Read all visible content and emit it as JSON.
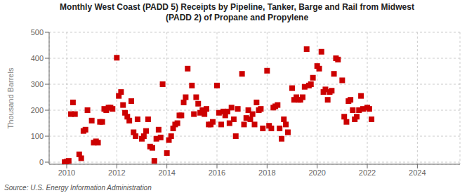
{
  "chart_data": {
    "type": "scatter",
    "title": "Monthly West Coast (PADD 5) Receipts by Pipeline, Tanker, Barge and Rail from Midwest\n(PADD 2) of Propane and Propylene",
    "ylabel": "Thousand Barrels",
    "annotations": [
      "Source: U.S. Energy Information Administration"
    ],
    "color": "#cc0000",
    "marker": "square",
    "grid": true,
    "xlim": [
      2009.3,
      2025.7
    ],
    "xticks": [
      2010,
      2012,
      2014,
      2016,
      2018,
      2020,
      2022,
      2024
    ],
    "ylim": [
      -8,
      500
    ],
    "yticks": [
      0,
      100,
      200,
      300,
      400,
      500
    ],
    "x": [
      2009.92,
      2010.0,
      2010.08,
      2010.17,
      2010.25,
      2010.33,
      2010.5,
      2010.58,
      2010.67,
      2010.75,
      2010.83,
      2011.0,
      2011.08,
      2011.17,
      2011.25,
      2011.33,
      2011.42,
      2011.5,
      2011.58,
      2011.67,
      2011.75,
      2011.83,
      2012.0,
      2012.08,
      2012.17,
      2012.25,
      2012.33,
      2012.42,
      2012.5,
      2012.58,
      2012.67,
      2012.75,
      2012.83,
      2013.0,
      2013.08,
      2013.17,
      2013.25,
      2013.33,
      2013.42,
      2013.5,
      2013.58,
      2013.67,
      2013.75,
      2013.83,
      2014.0,
      2014.08,
      2014.17,
      2014.25,
      2014.33,
      2014.42,
      2014.5,
      2014.58,
      2014.67,
      2014.75,
      2014.83,
      2015.0,
      2015.08,
      2015.17,
      2015.25,
      2015.33,
      2015.42,
      2015.5,
      2015.58,
      2015.67,
      2015.75,
      2015.83,
      2016.0,
      2016.08,
      2016.17,
      2016.25,
      2016.33,
      2016.42,
      2016.5,
      2016.58,
      2016.67,
      2016.75,
      2016.83,
      2017.0,
      2017.08,
      2017.17,
      2017.25,
      2017.33,
      2017.42,
      2017.5,
      2017.58,
      2017.67,
      2017.75,
      2017.83,
      2018.0,
      2018.08,
      2018.17,
      2018.25,
      2018.33,
      2018.42,
      2018.5,
      2018.58,
      2018.67,
      2018.75,
      2018.83,
      2019.0,
      2019.08,
      2019.17,
      2019.25,
      2019.33,
      2019.42,
      2019.5,
      2019.58,
      2019.67,
      2019.75,
      2019.83,
      2020.0,
      2020.08,
      2020.17,
      2020.25,
      2020.33,
      2020.42,
      2020.5,
      2020.58,
      2020.67,
      2020.75,
      2020.83,
      2021.0,
      2021.08,
      2021.17,
      2021.25,
      2021.33,
      2021.42,
      2021.5,
      2021.58,
      2021.67,
      2021.75,
      2021.83,
      2022.0,
      2022.08,
      2022.17
    ],
    "values": [
      0,
      2,
      5,
      185,
      230,
      185,
      30,
      15,
      120,
      125,
      200,
      160,
      75,
      80,
      75,
      155,
      155,
      205,
      200,
      210,
      210,
      205,
      402,
      255,
      270,
      220,
      190,
      175,
      160,
      235,
      115,
      100,
      165,
      90,
      100,
      120,
      165,
      60,
      55,
      5,
      90,
      125,
      95,
      300,
      35,
      85,
      100,
      130,
      145,
      150,
      180,
      180,
      230,
      250,
      360,
      295,
      185,
      250,
      225,
      190,
      200,
      185,
      205,
      145,
      145,
      155,
      295,
      190,
      145,
      195,
      180,
      195,
      150,
      210,
      165,
      100,
      205,
      340,
      145,
      170,
      200,
      165,
      185,
      145,
      230,
      200,
      205,
      130,
      352,
      140,
      130,
      210,
      215,
      220,
      130,
      90,
      165,
      145,
      115,
      285,
      240,
      250,
      240,
      240,
      250,
      290,
      435,
      295,
      300,
      325,
      370,
      360,
      425,
      270,
      280,
      240,
      270,
      275,
      340,
      400,
      395,
      315,
      175,
      155,
      235,
      240,
      200,
      165,
      175,
      200,
      255,
      205,
      210,
      205,
      165
    ]
  }
}
